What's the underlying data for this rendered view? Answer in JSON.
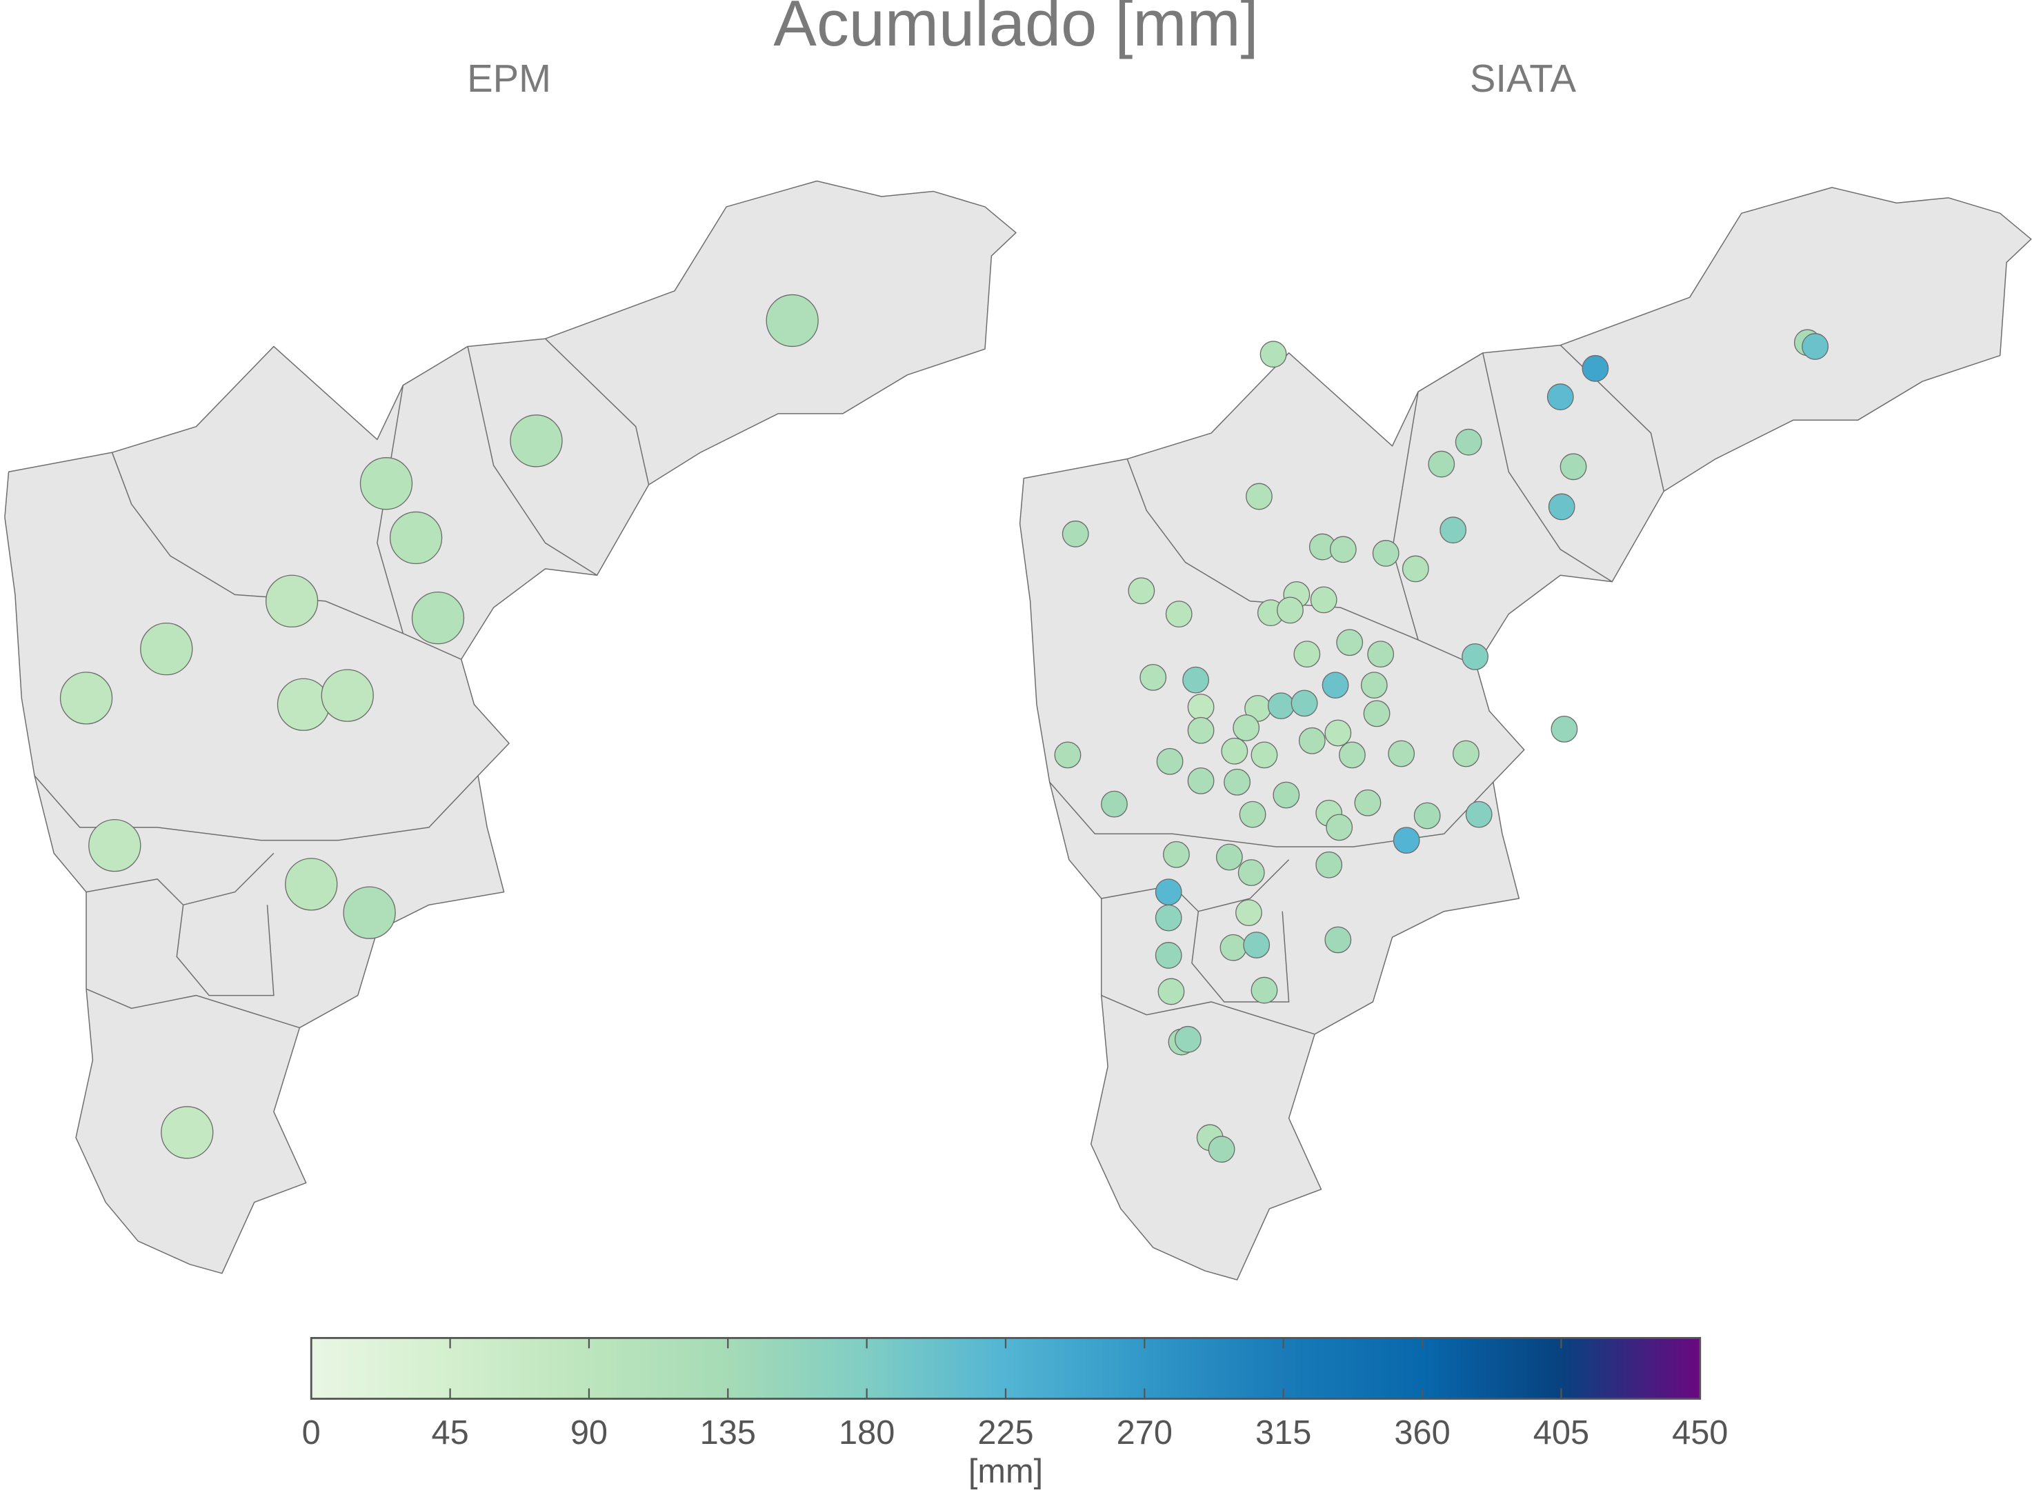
{
  "title": "Acumulado [mm]",
  "panels": [
    {
      "title": "EPM",
      "values": [
        115,
        110,
        100,
        100,
        85,
        110,
        90,
        85,
        80,
        85,
        80,
        90,
        115,
        75
      ]
    },
    {
      "title": "SIATA",
      "values": [
        110,
        130,
        200,
        250,
        215,
        140,
        130,
        135,
        200,
        110,
        125,
        170,
        120,
        115,
        125,
        110,
        95,
        95,
        95,
        100,
        100,
        100,
        115,
        100,
        120,
        175,
        110,
        170,
        200,
        120,
        80,
        100,
        170,
        170,
        120,
        150,
        110,
        110,
        95,
        120,
        120,
        100,
        100,
        115,
        120,
        115,
        125,
        125,
        125,
        130,
        120,
        140,
        120,
        105,
        120,
        135,
        170,
        225,
        120,
        130,
        120,
        130,
        220,
        160,
        90,
        120,
        170,
        140,
        150,
        125,
        110,
        130,
        150,
        110,
        140
      ]
    }
  ],
  "colorbar": {
    "label": "[mm]",
    "lim": [
      0,
      450
    ],
    "ticks": [
      0,
      45,
      90,
      135,
      180,
      225,
      270,
      315,
      360,
      405,
      450
    ],
    "colors": [
      "#e9f6e4",
      "#d3efcd",
      "#bce5bd",
      "#a5dbb6",
      "#7fcdc4",
      "#53b5d3",
      "#3198c8",
      "#1a7bb8",
      "#0868ac",
      "#08427f",
      "#6a0880"
    ]
  }
}
